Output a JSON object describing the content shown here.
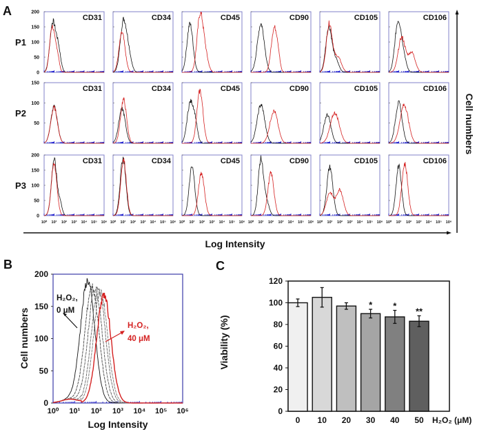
{
  "panel_labels": {
    "a": "A",
    "b": "B",
    "c": "C"
  },
  "colors": {
    "control": "#111111",
    "marker": "#d42020",
    "axis_frame": "#3a3aa8",
    "tick_marks": "#1a1ad0"
  },
  "chart_data": [
    {
      "type": "line",
      "panel": "A",
      "subtype": "flow-cytometry histogram grid",
      "xlabel": "Log Intensity",
      "ylabel": "Cell numbers",
      "x_scale": "log",
      "xlim": [
        1,
        1000000
      ],
      "x_tick_labels": [
        "10⁰",
        "10¹",
        "10²",
        "10³",
        "10⁴",
        "10⁵",
        "10⁶"
      ],
      "rows": [
        {
          "label": "P1",
          "ylim": [
            0,
            200
          ],
          "y_ticks": [
            "0",
            "50",
            "100",
            "150",
            "200"
          ],
          "panels": [
            {
              "marker": "CD31",
              "control_peaks": [
                [
                  0.85,
                  160,
                  0.28
                ],
                [
                  1.4,
                  80,
                  0.25
                ]
              ],
              "marker_peaks": [
                [
                  0.8,
                  150,
                  0.25
                ],
                [
                  1.3,
                  60,
                  0.2
                ]
              ]
            },
            {
              "marker": "CD34",
              "control_peaks": [
                [
                  1.0,
                  155,
                  0.3
                ],
                [
                  1.5,
                  70,
                  0.3
                ]
              ],
              "marker_peaks": [
                [
                  0.9,
                  130,
                  0.3
                ]
              ]
            },
            {
              "marker": "CD45",
              "control_peaks": [
                [
                  0.8,
                  160,
                  0.3
                ]
              ],
              "marker_peaks": [
                [
                  1.8,
                  180,
                  0.3
                ],
                [
                  2.3,
                  60,
                  0.3
                ]
              ]
            },
            {
              "marker": "CD90",
              "control_peaks": [
                [
                  1.0,
                  160,
                  0.35
                ]
              ],
              "marker_peaks": [
                [
                  2.3,
                  140,
                  0.28
                ],
                [
                  2.7,
                  50,
                  0.2
                ]
              ]
            },
            {
              "marker": "CD105",
              "control_peaks": [
                [
                  0.9,
                  150,
                  0.3
                ],
                [
                  1.6,
                  40,
                  0.3
                ]
              ],
              "marker_peaks": [
                [
                  0.95,
                  160,
                  0.3
                ],
                [
                  1.8,
                  50,
                  0.35
                ]
              ]
            },
            {
              "marker": "CD106",
              "control_peaks": [
                [
                  0.9,
                  155,
                  0.3
                ],
                [
                  1.4,
                  60,
                  0.3
                ]
              ],
              "marker_peaks": [
                [
                  1.3,
                  115,
                  0.35
                ],
                [
                  2.3,
                  65,
                  0.35
                ]
              ]
            }
          ]
        },
        {
          "label": "P2",
          "ylim": [
            0,
            150
          ],
          "y_ticks": [
            "50",
            "100",
            "150"
          ],
          "panels": [
            {
              "marker": "CD31",
              "control_peaks": [
                [
                  1.0,
                  90,
                  0.33
                ]
              ],
              "marker_peaks": [
                [
                  1.0,
                  88,
                  0.33
                ]
              ]
            },
            {
              "marker": "CD34",
              "control_peaks": [
                [
                  0.9,
                  85,
                  0.33
                ]
              ],
              "marker_peaks": [
                [
                  1.05,
                  108,
                  0.3
                ]
              ]
            },
            {
              "marker": "CD45",
              "control_peaks": [
                [
                  0.8,
                  95,
                  0.3
                ],
                [
                  1.3,
                  50,
                  0.25
                ]
              ],
              "marker_peaks": [
                [
                  1.8,
                  130,
                  0.3
                ]
              ]
            },
            {
              "marker": "CD90",
              "control_peaks": [
                [
                  1.0,
                  95,
                  0.38
                ]
              ],
              "marker_peaks": [
                [
                  2.3,
                  80,
                  0.4
                ]
              ]
            },
            {
              "marker": "CD105",
              "control_peaks": [
                [
                  0.75,
                  70,
                  0.35
                ]
              ],
              "marker_peaks": [
                [
                  1.5,
                  75,
                  0.45
                ]
              ]
            },
            {
              "marker": "CD106",
              "control_peaks": [
                [
                  1.0,
                  100,
                  0.33
                ]
              ],
              "marker_peaks": [
                [
                  1.55,
                  95,
                  0.42
                ]
              ]
            }
          ]
        },
        {
          "label": "P3",
          "ylim": [
            0,
            200
          ],
          "y_ticks": [
            "0",
            "50",
            "100",
            "150",
            "200"
          ],
          "panels": [
            {
              "marker": "CD31",
              "control_peaks": [
                [
                  1.0,
                  185,
                  0.27
                ],
                [
                  1.6,
                  40,
                  0.2
                ]
              ],
              "marker_peaks": [
                [
                  1.0,
                  170,
                  0.28
                ]
              ]
            },
            {
              "marker": "CD34",
              "control_peaks": [
                [
                  1.0,
                  190,
                  0.28
                ]
              ],
              "marker_peaks": [
                [
                  1.05,
                  185,
                  0.28
                ]
              ]
            },
            {
              "marker": "CD45",
              "control_peaks": [
                [
                  1.0,
                  160,
                  0.28
                ]
              ],
              "marker_peaks": [
                [
                  1.95,
                  140,
                  0.3
                ]
              ]
            },
            {
              "marker": "CD90",
              "control_peaks": [
                [
                  1.0,
                  185,
                  0.27
                ],
                [
                  1.6,
                  40,
                  0.25
                ]
              ],
              "marker_peaks": [
                [
                  2.0,
                  140,
                  0.3
                ]
              ]
            },
            {
              "marker": "CD105",
              "control_peaks": [
                [
                  1.0,
                  160,
                  0.3
                ]
              ],
              "marker_peaks": [
                [
                  1.0,
                  75,
                  0.35
                ],
                [
                  2.0,
                  85,
                  0.35
                ]
              ]
            },
            {
              "marker": "CD106",
              "control_peaks": [
                [
                  1.0,
                  165,
                  0.27
                ]
              ],
              "marker_peaks": [
                [
                  1.6,
                  170,
                  0.3
                ]
              ]
            }
          ]
        }
      ]
    },
    {
      "type": "line",
      "panel": "B",
      "xlabel": "Log Intensity",
      "ylabel": "Cell numbers",
      "x_scale": "log",
      "xlim": [
        1,
        1000000
      ],
      "ylim": [
        0,
        200
      ],
      "y_ticks": [
        "0",
        "50",
        "100",
        "150",
        "200"
      ],
      "x_tick_labels": [
        "10⁰",
        "10¹",
        "10²",
        "10³",
        "10⁴",
        "10⁵",
        "10⁶"
      ],
      "annotations": [
        {
          "lines": [
            "H₂O₂,",
            "0 μM"
          ],
          "color": "#111111"
        },
        {
          "lines": [
            "H₂O₂,",
            "40 μM"
          ],
          "color": "#d42020"
        }
      ],
      "series": [
        {
          "peak_log10": 1.6,
          "peak_count": 190,
          "color": "#111111"
        },
        {
          "peak_log10": 1.8,
          "peak_count": 180,
          "color": "#444444"
        },
        {
          "peak_log10": 1.95,
          "peak_count": 178,
          "color": "#555555"
        },
        {
          "peak_log10": 2.1,
          "peak_count": 176,
          "color": "#666666"
        },
        {
          "peak_log10": 2.2,
          "peak_count": 172,
          "color": "#777777"
        },
        {
          "peak_log10": 2.35,
          "peak_count": 168,
          "color": "#d42020"
        }
      ]
    },
    {
      "type": "bar",
      "panel": "C",
      "categories": [
        "0",
        "10",
        "20",
        "30",
        "40",
        "50"
      ],
      "values": [
        100,
        105,
        97,
        90,
        87,
        83
      ],
      "errors": [
        3.5,
        9,
        3,
        4,
        6,
        5
      ],
      "significance": [
        "",
        "",
        "",
        "*",
        "*",
        "**"
      ],
      "bar_colors": [
        "#f0f0f0",
        "#d8d8d8",
        "#bfbfbf",
        "#a5a5a5",
        "#808080",
        "#5f5f5f"
      ],
      "xlabel": "H₂O₂ (μM)",
      "ylabel": "Viability (%)",
      "ylim": [
        0,
        120
      ],
      "y_ticks": [
        "0",
        "20",
        "40",
        "60",
        "80",
        "100",
        "120"
      ]
    }
  ]
}
